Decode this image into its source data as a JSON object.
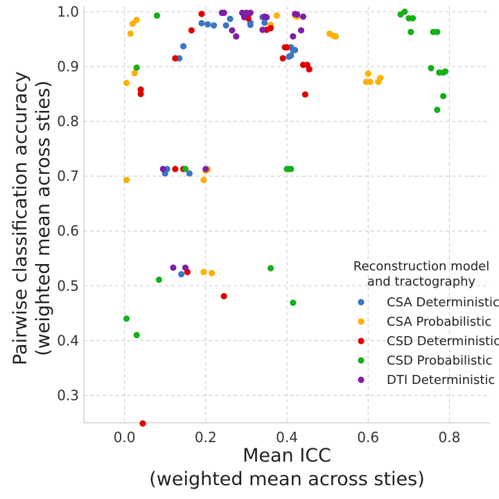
{
  "chart_data": {
    "type": "scatter",
    "xlabel_lines": [
      "Mean ICC",
      "(weighted mean across sties)"
    ],
    "ylabel_lines": [
      "Pairwise classification accuracy",
      "(weighted mean across sties)"
    ],
    "xlim": [
      -0.1,
      0.9
    ],
    "ylim": [
      0.25,
      1.01
    ],
    "xticks": [
      0.0,
      0.2,
      0.4,
      0.6,
      0.8
    ],
    "xtick_labels": [
      "0.0",
      "0.2",
      "0.4",
      "0.6",
      "0.8"
    ],
    "yticks": [
      0.3,
      0.4,
      0.5,
      0.6,
      0.7,
      0.8,
      0.9,
      1.0
    ],
    "ytick_labels": [
      "0.3",
      "0.4",
      "0.5",
      "0.6",
      "0.7",
      "0.8",
      "0.9",
      "1.0"
    ],
    "grid": true,
    "legend_placement": "right",
    "legend_title_lines": [
      "Reconstruction model",
      "and tractography"
    ],
    "series": [
      {
        "name": "CSA Deterministic",
        "color": "#3a76c4",
        "points": [
          [
            0.135,
            0.915
          ],
          [
            0.145,
            0.937
          ],
          [
            0.19,
            0.979
          ],
          [
            0.205,
            0.977
          ],
          [
            0.22,
            0.975
          ],
          [
            0.25,
            0.975
          ],
          [
            0.26,
            0.987
          ],
          [
            0.31,
            0.976
          ],
          [
            0.31,
            0.98
          ],
          [
            0.345,
            0.98
          ],
          [
            0.34,
            0.99
          ],
          [
            0.41,
            0.92
          ],
          [
            0.415,
            0.93
          ],
          [
            0.405,
            0.918
          ],
          [
            0.42,
            0.93
          ],
          [
            0.41,
            0.935
          ],
          [
            0.1,
            0.705
          ],
          [
            0.105,
            0.713
          ],
          [
            0.16,
            0.705
          ],
          [
            0.14,
            0.521
          ]
        ]
      },
      {
        "name": "CSA Probabilistic",
        "color": "#ffb000",
        "points": [
          [
            0.005,
            0.87
          ],
          [
            0.015,
            0.96
          ],
          [
            0.02,
            0.978
          ],
          [
            0.03,
            0.985
          ],
          [
            0.025,
            0.888
          ],
          [
            0.005,
            0.693
          ],
          [
            0.2,
            0.71
          ],
          [
            0.205,
            0.712
          ],
          [
            0.195,
            0.693
          ],
          [
            0.36,
            0.976
          ],
          [
            0.375,
            0.993
          ],
          [
            0.42,
            0.993
          ],
          [
            0.425,
            0.991
          ],
          [
            0.505,
            0.96
          ],
          [
            0.515,
            0.956
          ],
          [
            0.52,
            0.955
          ],
          [
            0.595,
            0.872
          ],
          [
            0.6,
            0.887
          ],
          [
            0.605,
            0.872
          ],
          [
            0.625,
            0.872
          ],
          [
            0.63,
            0.879
          ],
          [
            0.195,
            0.525
          ],
          [
            0.215,
            0.523
          ]
        ]
      },
      {
        "name": "CSD Deterministic",
        "color": "#e00000",
        "points": [
          [
            0.04,
            0.85
          ],
          [
            0.04,
            0.858
          ],
          [
            0.125,
            0.915
          ],
          [
            0.165,
            0.966
          ],
          [
            0.19,
            0.996
          ],
          [
            0.305,
            0.988
          ],
          [
            0.35,
            0.967
          ],
          [
            0.36,
            0.97
          ],
          [
            0.39,
            0.915
          ],
          [
            0.395,
            0.935
          ],
          [
            0.4,
            0.935
          ],
          [
            0.44,
            0.903
          ],
          [
            0.45,
            0.903
          ],
          [
            0.455,
            0.895
          ],
          [
            0.445,
            0.849
          ],
          [
            0.125,
            0.713
          ],
          [
            0.145,
            0.713
          ],
          [
            0.155,
            0.525
          ],
          [
            0.245,
            0.481
          ],
          [
            0.045,
            0.247
          ]
        ]
      },
      {
        "name": "CSD Probabilistic",
        "color": "#15b01a",
        "points": [
          [
            0.08,
            0.993
          ],
          [
            0.03,
            0.898
          ],
          [
            0.68,
            0.995
          ],
          [
            0.69,
            1.0
          ],
          [
            0.7,
            0.988
          ],
          [
            0.71,
            0.988
          ],
          [
            0.705,
            0.963
          ],
          [
            0.755,
            0.897
          ],
          [
            0.76,
            0.963
          ],
          [
            0.77,
            0.963
          ],
          [
            0.775,
            0.889
          ],
          [
            0.785,
            0.889
          ],
          [
            0.79,
            0.891
          ],
          [
            0.785,
            0.846
          ],
          [
            0.77,
            0.821
          ],
          [
            0.15,
            0.713
          ],
          [
            0.4,
            0.713
          ],
          [
            0.405,
            0.713
          ],
          [
            0.41,
            0.713
          ],
          [
            0.085,
            0.511
          ],
          [
            0.36,
            0.532
          ],
          [
            0.005,
            0.44
          ],
          [
            0.415,
            0.469
          ],
          [
            0.03,
            0.41
          ]
        ]
      },
      {
        "name": "DTI Deterministic",
        "color": "#7e1fa8",
        "points": [
          [
            0.24,
            0.998
          ],
          [
            0.245,
            0.998
          ],
          [
            0.29,
            0.998
          ],
          [
            0.295,
            0.994
          ],
          [
            0.3,
            0.998
          ],
          [
            0.31,
            0.998
          ],
          [
            0.345,
            0.991
          ],
          [
            0.35,
            0.99
          ],
          [
            0.42,
            0.996
          ],
          [
            0.425,
            0.995
          ],
          [
            0.44,
            0.991
          ],
          [
            0.265,
            0.966
          ],
          [
            0.275,
            0.955
          ],
          [
            0.295,
            0.99
          ],
          [
            0.34,
            0.967
          ],
          [
            0.415,
            0.955
          ],
          [
            0.435,
            0.966
          ],
          [
            0.095,
            0.713
          ],
          [
            0.2,
            0.713
          ],
          [
            0.12,
            0.533
          ],
          [
            0.15,
            0.533
          ]
        ]
      }
    ]
  }
}
